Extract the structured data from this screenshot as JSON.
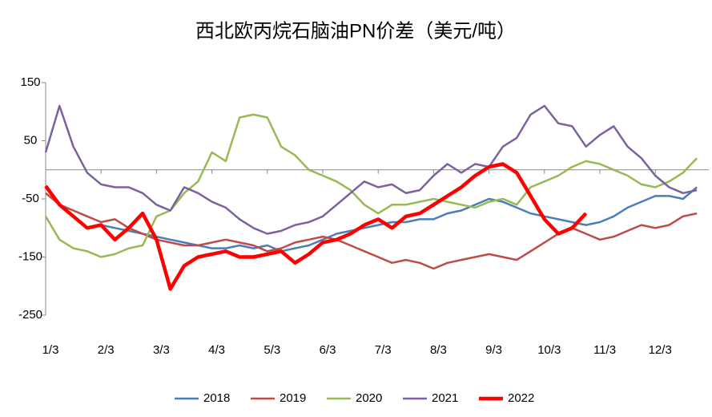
{
  "chart_data": {
    "type": "line",
    "title": "西北欧丙烷石脑油PN价差（美元/吨）",
    "categories": [
      "1/3",
      null,
      null,
      null,
      "2/3",
      null,
      null,
      null,
      "3/3",
      null,
      null,
      null,
      "4/3",
      null,
      null,
      null,
      "5/3",
      null,
      null,
      null,
      "6/3",
      null,
      null,
      null,
      "7/3",
      null,
      null,
      null,
      "8/3",
      null,
      null,
      null,
      "9/3",
      null,
      null,
      null,
      "10/3",
      null,
      null,
      null,
      "11/3",
      null,
      null,
      null,
      "12/3",
      null,
      null,
      null
    ],
    "ylim": [
      -250,
      150
    ],
    "yticks": [
      150,
      50,
      -50,
      -150,
      -250
    ],
    "series": [
      {
        "name": "2018",
        "color": "#4a7ebb",
        "line_width": 2.5,
        "values": [
          null,
          null,
          null,
          null,
          -95,
          -100,
          -105,
          -110,
          -115,
          -120,
          -125,
          -130,
          -135,
          -135,
          -130,
          -135,
          -130,
          -140,
          -135,
          -130,
          -120,
          -110,
          -105,
          -100,
          -95,
          -90,
          -90,
          -85,
          -85,
          -75,
          -70,
          -60,
          -50,
          -55,
          -65,
          -75,
          -80,
          -85,
          -90,
          -95,
          -90,
          -80,
          -65,
          -55,
          -45,
          -45,
          -50,
          -30
        ]
      },
      {
        "name": "2019",
        "color": "#be4b48",
        "line_width": 2.5,
        "values": [
          -40,
          -60,
          -70,
          -80,
          -90,
          -85,
          -100,
          -110,
          -120,
          -125,
          -130,
          -130,
          -125,
          -120,
          -125,
          -130,
          -140,
          -135,
          -125,
          -120,
          -115,
          -120,
          -130,
          -140,
          -150,
          -160,
          -155,
          -160,
          -170,
          -160,
          -155,
          -150,
          -145,
          -150,
          -155,
          -140,
          -125,
          -110,
          -100,
          -110,
          -120,
          -115,
          -105,
          -95,
          -100,
          -95,
          -80,
          -75
        ]
      },
      {
        "name": "2020",
        "color": "#98b954",
        "line_width": 2.5,
        "values": [
          -80,
          -120,
          -135,
          -140,
          -150,
          -145,
          -135,
          -130,
          -80,
          -70,
          -40,
          -20,
          30,
          15,
          90,
          95,
          90,
          40,
          25,
          0,
          -10,
          -20,
          -35,
          -60,
          -75,
          -60,
          -60,
          -55,
          -50,
          -55,
          -60,
          -65,
          -55,
          -50,
          -60,
          -30,
          -20,
          -10,
          5,
          15,
          10,
          0,
          -10,
          -25,
          -30,
          -20,
          -5,
          20
        ]
      },
      {
        "name": "2021",
        "color": "#7d60a0",
        "line_width": 2.5,
        "values": [
          30,
          110,
          40,
          -5,
          -25,
          -30,
          -30,
          -40,
          -60,
          -70,
          -30,
          -40,
          -55,
          -65,
          -85,
          -100,
          -110,
          -105,
          -95,
          -90,
          -80,
          -60,
          -40,
          -20,
          -30,
          -25,
          -40,
          -35,
          -10,
          10,
          -5,
          10,
          5,
          40,
          55,
          95,
          110,
          80,
          75,
          40,
          60,
          75,
          40,
          20,
          -10,
          -30,
          -40,
          -35
        ]
      },
      {
        "name": "2022",
        "color": "#ff0000",
        "line_width": 4.5,
        "values": [
          -28,
          -60,
          -80,
          -100,
          -95,
          -120,
          -100,
          -75,
          -120,
          -205,
          -165,
          -150,
          -145,
          -140,
          -150,
          -150,
          -145,
          -140,
          -160,
          -145,
          -125,
          -120,
          -110,
          -95,
          -85,
          -100,
          -80,
          -75,
          -60,
          -45,
          -30,
          -10,
          5,
          10,
          -5,
          -45,
          -85,
          -110,
          -100,
          -75,
          null,
          null,
          null,
          null,
          null,
          null,
          null,
          null
        ]
      }
    ]
  }
}
